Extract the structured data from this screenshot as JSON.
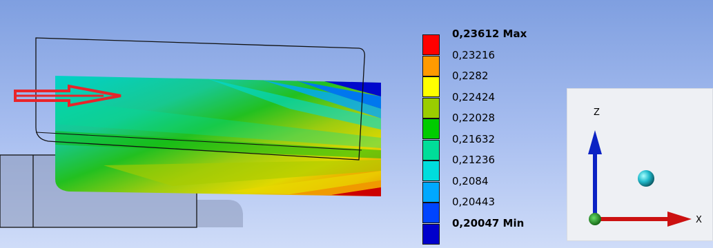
{
  "legend": {
    "title_max": "0,23612 Max",
    "title_min": "0,20047 Min",
    "items": [
      {
        "label": "0,23612 Max",
        "color": "#ff0000",
        "bold": true
      },
      {
        "label": "0,23216",
        "color": "#ff9a00",
        "bold": false
      },
      {
        "label": "0,2282",
        "color": "#ffff00",
        "bold": false
      },
      {
        "label": "0,22424",
        "color": "#9acd00",
        "bold": false
      },
      {
        "label": "0,22028",
        "color": "#00cc00",
        "bold": false
      },
      {
        "label": "0,21632",
        "color": "#00dd99",
        "bold": false
      },
      {
        "label": "0,21236",
        "color": "#00dddd",
        "bold": false
      },
      {
        "label": "0,2084",
        "color": "#00a8ff",
        "bold": false
      },
      {
        "label": "0,20443",
        "color": "#0044ff",
        "bold": false
      },
      {
        "label": "0,20047 Min",
        "color": "#0000cc",
        "bold": true
      }
    ]
  },
  "triad": {
    "x_label": "X",
    "z_label": "Z",
    "x_color": "#cc1111",
    "z_color": "#0b22c4",
    "origin_color": "#119911",
    "iso_ball_color": "#22bbcc"
  },
  "load_arrow": {
    "color": "#e8242a"
  }
}
